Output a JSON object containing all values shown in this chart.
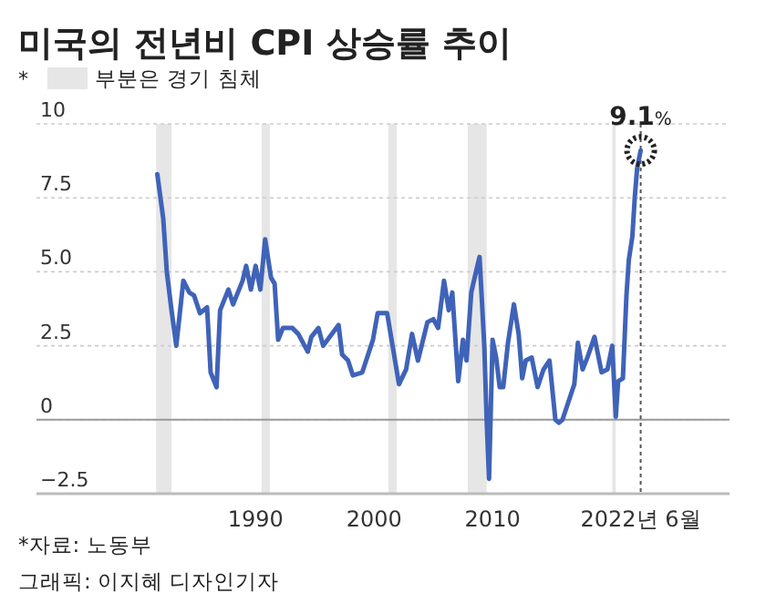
{
  "chart_data": {
    "type": "line",
    "title": "미국의 전년비 CPI 상승률 추이",
    "legend_title": "*",
    "legend": "top left",
    "x": [
      1981.7,
      1982.2,
      1982.5,
      1982.9,
      1983.3,
      1983.9,
      1984.4,
      1984.8,
      1985.3,
      1985.9,
      1986.2,
      1986.7,
      1987.0,
      1987.7,
      1988.1,
      1988.9,
      1989.2,
      1989.6,
      1990.0,
      1990.4,
      1990.8,
      1991.3,
      1991.6,
      1991.9,
      1992.3,
      1993.1,
      1993.6,
      1994.4,
      1994.7,
      1995.3,
      1995.7,
      1997.0,
      1997.3,
      1997.8,
      1998.2,
      1999.0,
      1999.9,
      2000.3,
      2001.1,
      2002.1,
      2002.7,
      2003.2,
      2003.7,
      2004.5,
      2005.0,
      2005.4,
      2005.9,
      2006.3,
      2006.6,
      2007.1,
      2007.5,
      2007.8,
      2008.2,
      2008.6,
      2008.9,
      2009.3,
      2009.5,
      2009.7,
      2010.0,
      2010.3,
      2010.6,
      2010.9,
      2011.3,
      2011.8,
      2012.2,
      2012.5,
      2012.8,
      2013.3,
      2013.8,
      2014.3,
      2014.8,
      2015.3,
      2015.6,
      2015.9,
      2016.9,
      2017.2,
      2017.6,
      2018.0,
      2018.6,
      2019.2,
      2019.7,
      2020.1,
      2020.4,
      2020.6,
      2021.0,
      2021.3,
      2021.5,
      2021.8,
      2022.0,
      2022.2,
      2022.5
    ],
    "series": [
      {
        "color": "#3f63b8",
        "values": [
          8.3,
          6.8,
          5.0,
          3.7,
          2.5,
          4.7,
          4.3,
          4.2,
          3.6,
          3.8,
          1.6,
          1.1,
          3.7,
          4.4,
          3.9,
          4.7,
          5.2,
          4.4,
          5.2,
          4.4,
          6.1,
          4.8,
          4.6,
          2.7,
          3.1,
          3.1,
          2.9,
          2.3,
          2.8,
          3.1,
          2.5,
          3.2,
          2.2,
          2.0,
          1.5,
          1.6,
          2.7,
          3.6,
          3.6,
          1.2,
          1.7,
          2.9,
          2.0,
          3.3,
          3.4,
          3.1,
          4.7,
          3.7,
          4.3,
          1.3,
          2.7,
          2.0,
          4.3,
          5.0,
          5.5,
          2.5,
          0,
          -2.0,
          2.7,
          2.1,
          1.1,
          1.1,
          2.6,
          3.9,
          2.9,
          1.4,
          2.0,
          2.1,
          1.1,
          1.7,
          2.0,
          0,
          -0.1,
          0,
          1.2,
          2.6,
          1.7,
          2.1,
          2.8,
          1.6,
          1.7,
          2.5,
          0.1,
          1.3,
          1.4,
          4.2,
          5.4,
          6.2,
          7.5,
          8.5,
          9.1
        ]
      }
    ],
    "xlim": [
      1971.5,
      2030
    ],
    "xticks": [
      1990,
      2000,
      2010,
      {
        "value": 2022.5,
        "label": "2022년 6월"
      }
    ],
    "ylim": [
      -2.5,
      10
    ],
    "yticks": [
      {
        "value": -2.5,
        "label": "−2.5"
      },
      0,
      2.5,
      {
        "value": 5,
        "label": "5.0"
      },
      7.5,
      10
    ],
    "grid": "y",
    "bands": [
      {
        "axis": "x",
        "from": 1981.6,
        "to": 1982.9,
        "color": "#e6e6e6",
        "label": "부분은 경기 침체"
      },
      {
        "axis": "x",
        "from": 1990.5,
        "to": 1991.2,
        "color": "#e6e6e6"
      },
      {
        "axis": "x",
        "from": 2001.2,
        "to": 2001.9,
        "color": "#e6e6e6"
      },
      {
        "axis": "x",
        "from": 2007.9,
        "to": 2009.5,
        "color": "#e6e6e6"
      },
      {
        "axis": "x",
        "from": 2020.1,
        "to": 2020.4,
        "color": "#e6e6e6"
      }
    ],
    "ref_lines": [
      {
        "axis": "y",
        "value": 0,
        "color": "#999999",
        "line_style": "solid"
      },
      {
        "axis": "x",
        "value": 2022.5,
        "color": "#555555",
        "line_style": "dotted"
      }
    ],
    "annotations": [
      {
        "text": "9.1%",
        "x": 2022.5,
        "y": 9.1
      },
      "*자료: 노동부",
      "그래픽: 이지혜 디자인기자"
    ]
  }
}
